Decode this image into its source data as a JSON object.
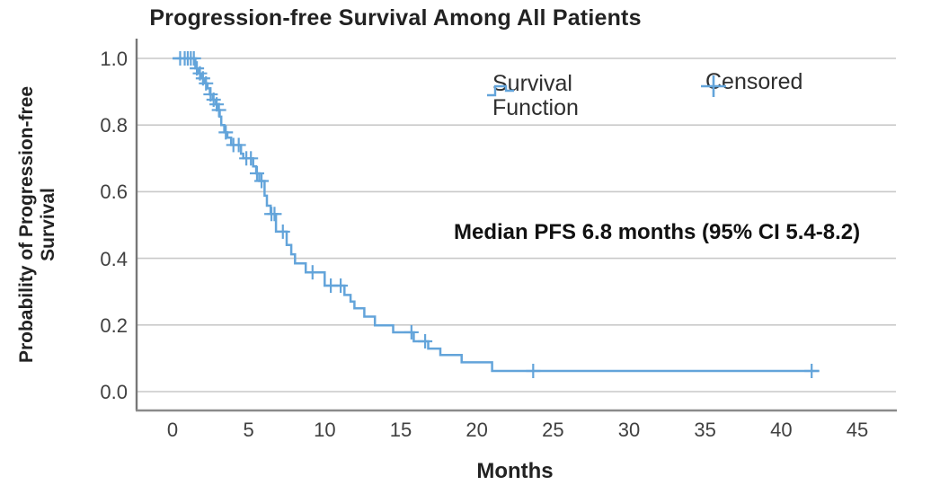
{
  "chart_data": {
    "type": "line",
    "subtype": "kaplan-meier-step-curve",
    "title": "Progression-free Survival Among All Patients",
    "xlabel": "Months",
    "ylabel": "Probability of Progression-free\nSurvival",
    "annotation": "Median PFS 6.8 months (95% CI 5.4-8.2)",
    "legend_position": "top-inside",
    "legend": [
      {
        "label": "Survival\nFunction",
        "icon": "step-line-icon"
      },
      {
        "label": "Censored",
        "icon": "plus-icon"
      }
    ],
    "xlim": [
      0,
      47.5
    ],
    "ylim": [
      0.0,
      1.0
    ],
    "xticks": [
      "0",
      "5",
      "10",
      "15",
      "20",
      "25",
      "30",
      "35",
      "40",
      "45"
    ],
    "xtick_values": [
      0,
      5,
      10,
      15,
      20,
      25,
      30,
      35,
      40,
      45
    ],
    "yticks": [
      "0.0",
      "0.2",
      "0.4",
      "0.6",
      "0.8",
      "1.0"
    ],
    "ytick_values": [
      0.0,
      0.2,
      0.4,
      0.6,
      0.8,
      1.0
    ],
    "grid": "horizontal",
    "colors": {
      "curve": "#63a4da",
      "grid": "#c9c9c9",
      "axis": "#8a8a8a",
      "text": "#222222"
    },
    "series": [
      {
        "name": "Survival Function",
        "steps": [
          [
            0,
            1.0
          ],
          [
            1.5,
            0.97
          ],
          [
            1.7,
            0.955
          ],
          [
            1.9,
            0.94
          ],
          [
            2.1,
            0.925
          ],
          [
            2.3,
            0.91
          ],
          [
            2.45,
            0.892
          ],
          [
            2.65,
            0.876
          ],
          [
            2.85,
            0.862
          ],
          [
            3.0,
            0.845
          ],
          [
            3.1,
            0.825
          ],
          [
            3.2,
            0.8
          ],
          [
            3.4,
            0.778
          ],
          [
            3.6,
            0.762
          ],
          [
            3.85,
            0.74
          ],
          [
            4.5,
            0.714
          ],
          [
            4.65,
            0.7
          ],
          [
            5.3,
            0.676
          ],
          [
            5.5,
            0.655
          ],
          [
            5.7,
            0.632
          ],
          [
            6.05,
            0.588
          ],
          [
            6.2,
            0.558
          ],
          [
            6.45,
            0.533
          ],
          [
            6.8,
            0.48
          ],
          [
            7.5,
            0.44
          ],
          [
            7.8,
            0.412
          ],
          [
            8.05,
            0.385
          ],
          [
            8.75,
            0.358
          ],
          [
            10.0,
            0.318
          ],
          [
            11.3,
            0.29
          ],
          [
            11.7,
            0.27
          ],
          [
            11.95,
            0.25
          ],
          [
            12.6,
            0.225
          ],
          [
            13.3,
            0.199
          ],
          [
            14.5,
            0.178
          ],
          [
            15.85,
            0.151
          ],
          [
            16.8,
            0.129
          ],
          [
            17.6,
            0.11
          ],
          [
            19.0,
            0.088
          ],
          [
            21.0,
            0.062
          ]
        ],
        "end_month": 42.5,
        "censored": [
          [
            0.5,
            1.0
          ],
          [
            0.8,
            1.0
          ],
          [
            1.0,
            1.0
          ],
          [
            1.2,
            1.0
          ],
          [
            1.4,
            1.0
          ],
          [
            1.6,
            0.97
          ],
          [
            1.8,
            0.955
          ],
          [
            2.0,
            0.94
          ],
          [
            2.2,
            0.925
          ],
          [
            2.5,
            0.892
          ],
          [
            2.7,
            0.876
          ],
          [
            2.9,
            0.862
          ],
          [
            3.05,
            0.845
          ],
          [
            3.5,
            0.778
          ],
          [
            4.0,
            0.74
          ],
          [
            4.35,
            0.74
          ],
          [
            4.85,
            0.7
          ],
          [
            5.15,
            0.7
          ],
          [
            5.55,
            0.655
          ],
          [
            5.85,
            0.632
          ],
          [
            6.5,
            0.533
          ],
          [
            6.7,
            0.533
          ],
          [
            7.25,
            0.48
          ],
          [
            9.2,
            0.358
          ],
          [
            10.4,
            0.318
          ],
          [
            11.05,
            0.318
          ],
          [
            15.7,
            0.178
          ],
          [
            16.6,
            0.151
          ],
          [
            23.7,
            0.062
          ],
          [
            42.0,
            0.062
          ]
        ]
      }
    ],
    "median_pfs_months": 6.8,
    "ci95": "5.4-8.2"
  }
}
